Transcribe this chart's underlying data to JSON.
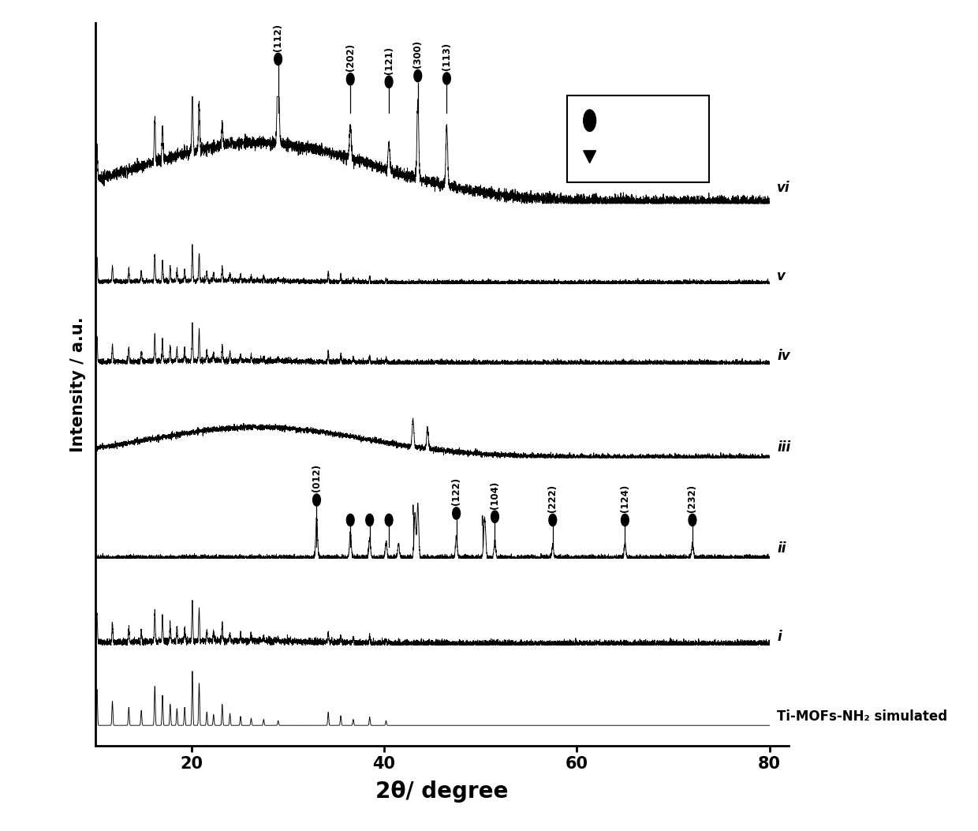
{
  "xlim": [
    10,
    80
  ],
  "xlabel": "2θ/ degree",
  "ylabel": "Intensity / a.u.",
  "background_color": "#ffffff",
  "trace_color": "#000000",
  "trace_labels": [
    "Ti-MOFs-NH₂ simulated",
    "i",
    "ii",
    "iii",
    "iv",
    "v",
    "vi"
  ],
  "offsets": [
    0.02,
    0.14,
    0.27,
    0.42,
    0.56,
    0.68,
    0.8
  ],
  "scales": [
    0.09,
    0.08,
    0.1,
    0.1,
    0.08,
    0.08,
    0.16
  ],
  "label_italic": [
    false,
    true,
    true,
    true,
    true,
    true,
    true
  ]
}
